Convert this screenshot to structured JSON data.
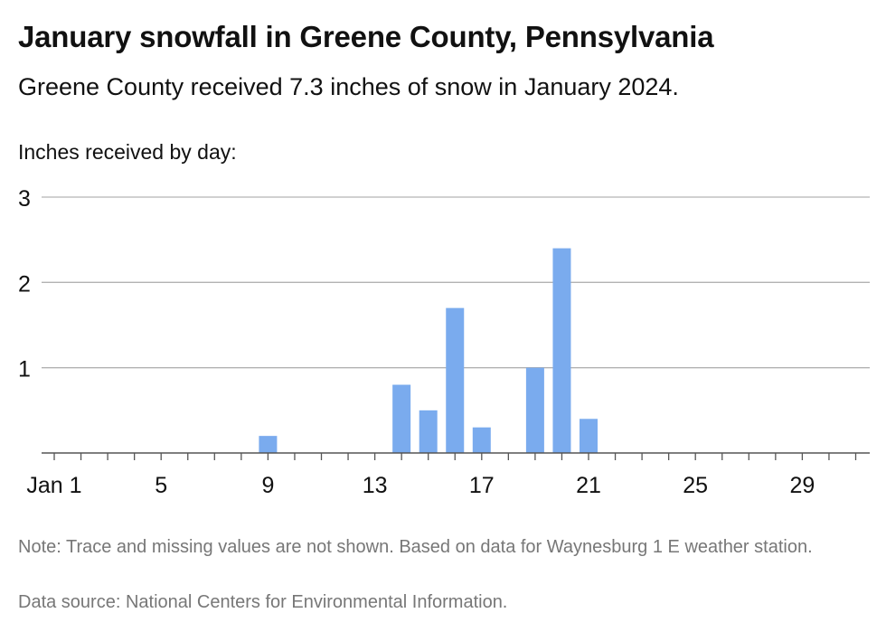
{
  "header": {
    "title": "January snowfall in Greene County, Pennsylvania",
    "subtitle": "Greene County received 7.3 inches of snow in January 2024.",
    "axis_caption": "Inches received by day:"
  },
  "footer": {
    "note": "Note: Trace and missing values are not shown. Based on data for Waynesburg 1 E weather station.",
    "source": "Data source: National Centers for Environmental Information."
  },
  "colors": {
    "bar": "#7aabee",
    "grid": "#b3b3b3",
    "axis": "#555555"
  },
  "chart_data": {
    "type": "bar",
    "title": "January snowfall in Greene County, Pennsylvania",
    "subtitle": "Greene County received 7.3 inches of snow in January 2024.",
    "ylabel": "Inches received by day:",
    "xlabel": "",
    "ylim": [
      0,
      3
    ],
    "yticks": [
      1,
      2,
      3
    ],
    "xlim": [
      1,
      31
    ],
    "xticks": [
      {
        "day": 1,
        "label": "Jan 1"
      },
      {
        "day": 5,
        "label": "5"
      },
      {
        "day": 9,
        "label": "9"
      },
      {
        "day": 13,
        "label": "13"
      },
      {
        "day": 17,
        "label": "17"
      },
      {
        "day": 21,
        "label": "21"
      },
      {
        "day": 25,
        "label": "25"
      },
      {
        "day": 29,
        "label": "29"
      }
    ],
    "grid": true,
    "points": [
      {
        "day": 9,
        "value": 0.2
      },
      {
        "day": 14,
        "value": 0.8
      },
      {
        "day": 15,
        "value": 0.5
      },
      {
        "day": 16,
        "value": 1.7
      },
      {
        "day": 17,
        "value": 0.3
      },
      {
        "day": 19,
        "value": 1.0
      },
      {
        "day": 20,
        "value": 2.4
      },
      {
        "day": 21,
        "value": 0.4
      }
    ]
  }
}
